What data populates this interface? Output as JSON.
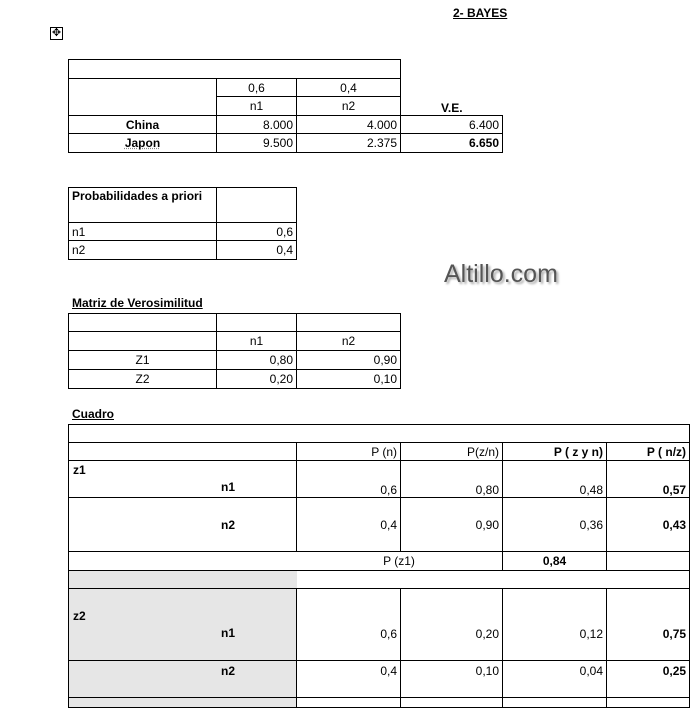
{
  "title": "2- BAYES",
  "icons": {
    "move": "move-handle-icon"
  },
  "watermark": "Altillo.com",
  "payoff": {
    "probs": [
      "0,6",
      "0,4"
    ],
    "states": [
      "n1",
      "n2"
    ],
    "ve_header": "V.E.",
    "rows": [
      {
        "label": "China",
        "n1": "8.000",
        "n2": "4.000",
        "ve": "6.400"
      },
      {
        "label": "Japon",
        "n1": "9.500",
        "n2": "2.375",
        "ve": "6.650"
      }
    ]
  },
  "priori": {
    "header": "Probabilidades a priori",
    "rows": [
      {
        "label": "n1",
        "value": "0,6"
      },
      {
        "label": "n2",
        "value": "0,4"
      }
    ]
  },
  "verosim": {
    "title": "Matriz de Verosimilitud",
    "cols": [
      "n1",
      "n2"
    ],
    "rows": [
      {
        "label": "Z1",
        "n1": "0,80",
        "n2": "0,90"
      },
      {
        "label": "Z2",
        "n1": "0,20",
        "n2": "0,10"
      }
    ]
  },
  "cuadro": {
    "title": "Cuadro",
    "headers": [
      "P (n)",
      "P(z/n)",
      "P ( z y n)",
      "P ( n/z)"
    ],
    "z1": {
      "label": "z1",
      "rows": [
        {
          "label": "n1",
          "pn": "0,6",
          "pzn": "0,80",
          "pzyn": "0,48",
          "pnz": "0,57"
        },
        {
          "label": "n2",
          "pn": "0,4",
          "pzn": "0,90",
          "pzyn": "0,36",
          "pnz": "0,43"
        }
      ],
      "total_label": "P (z1)",
      "total": "0,84"
    },
    "z2": {
      "label": "z2",
      "rows": [
        {
          "label": "n1",
          "pn": "0,6",
          "pzn": "0,20",
          "pzyn": "0,12",
          "pnz": "0,75"
        },
        {
          "label": "n2",
          "pn": "0,4",
          "pzn": "0,10",
          "pzyn": "0,04",
          "pnz": "0,25"
        }
      ]
    }
  }
}
